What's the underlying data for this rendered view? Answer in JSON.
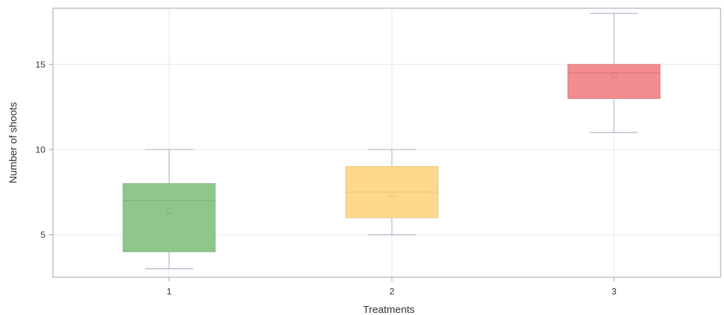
{
  "chart_data": {
    "type": "box",
    "xlabel": "Treatments",
    "ylabel": "Number of shoots",
    "categories": [
      "1",
      "2",
      "3"
    ],
    "ylim": [
      2.5,
      18.3
    ],
    "yticks": [
      5,
      10,
      15
    ],
    "grid": true,
    "boxes": [
      {
        "category": "1",
        "min": 3,
        "q1": 4,
        "median": 7,
        "q3": 8,
        "max": 10,
        "mean": 6.4,
        "color": "#8fc78a",
        "edge": "#7fb37a"
      },
      {
        "category": "2",
        "min": 5,
        "q1": 6,
        "median": 7.5,
        "q3": 9,
        "max": 10,
        "mean": 7.4,
        "color": "#fdd98e",
        "edge": "#e9c27a"
      },
      {
        "category": "3",
        "min": 11,
        "q1": 13,
        "median": 14.5,
        "q3": 15,
        "max": 18,
        "mean": 14.4,
        "color": "#f28d8f",
        "edge": "#d97779"
      }
    ],
    "colors": {
      "axis": "#9aa0ae",
      "grid": "#e3e5ec",
      "whisker": "#a7b4c4"
    }
  }
}
